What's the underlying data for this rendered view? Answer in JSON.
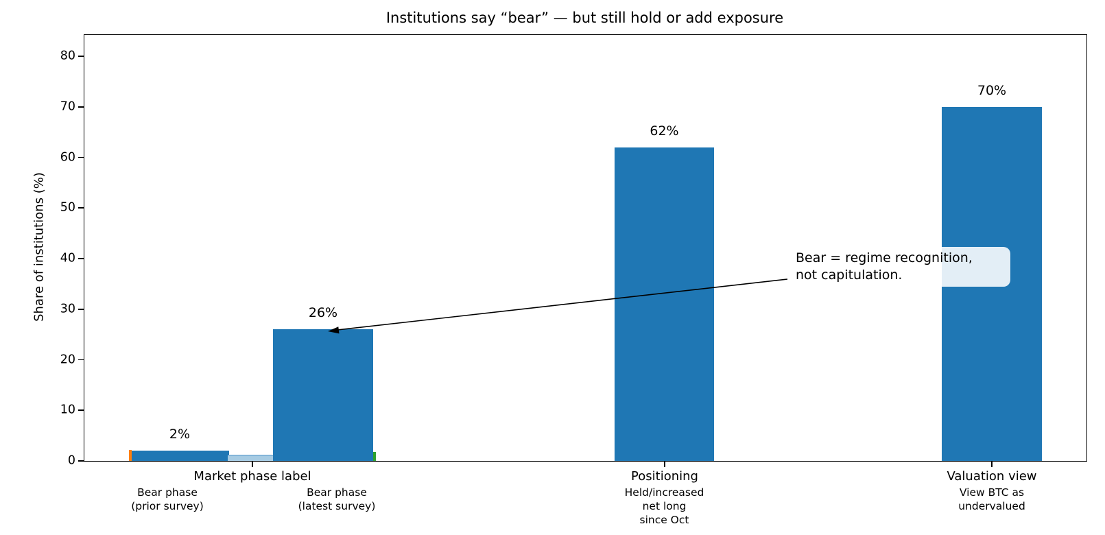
{
  "chart_data": {
    "type": "bar",
    "title": "Institutions say “bear” — but still hold or add exposure",
    "ylabel": "Share of institutions (%)",
    "ylim": [
      0,
      84
    ],
    "yticks": [
      0,
      10,
      20,
      30,
      40,
      50,
      60,
      70,
      80
    ],
    "grid": false,
    "legend": "none",
    "bar_color": "#1f77b4",
    "categories": [
      "Bear phase (prior survey)",
      "Bear phase (latest survey)",
      "Held/increased net long since Oct",
      "View BTC as undervalued"
    ],
    "values": [
      2,
      26,
      62,
      70
    ],
    "value_labels": [
      "2%",
      "26%",
      "62%",
      "70%"
    ],
    "group_labels": [
      "Market phase label",
      "Positioning",
      "Valuation view"
    ],
    "bar_sublabels": [
      "Bear phase\n(prior survey)",
      "Bear phase\n(latest survey)",
      "Held/increased\nnet long\nsince Oct",
      "View BTC as\nundervalued"
    ],
    "annotation": {
      "line1": "Bear = regime recognition,",
      "line2": "not capitulation.",
      "points_to": "26% bar"
    },
    "minor_marks": [
      {
        "name": "orange-sliver",
        "color": "#ff7f0e"
      },
      {
        "name": "light-blue-thin-bar",
        "color": "#a6cbe3"
      },
      {
        "name": "green-sliver",
        "color": "#2ca02c"
      }
    ]
  }
}
